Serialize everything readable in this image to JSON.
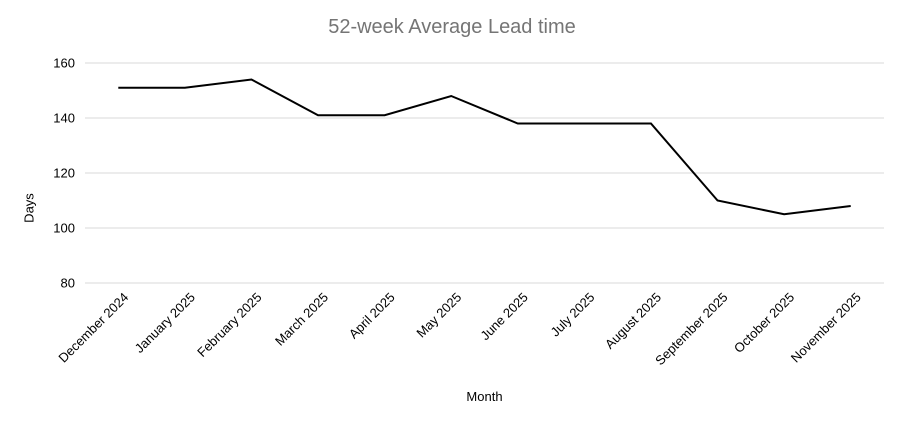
{
  "chart": {
    "title": "52-week Average Lead time",
    "x_axis_title": "Month",
    "y_axis_title": "Days"
  },
  "chart_data": {
    "type": "line",
    "title": "52-week Average Lead time",
    "xlabel": "Month",
    "ylabel": "Days",
    "categories": [
      "December 2024",
      "January 2025",
      "February 2025",
      "March 2025",
      "April 2025",
      "May 2025",
      "June 2025",
      "July 2025",
      "August 2025",
      "September 2025",
      "October 2025",
      "November 2025"
    ],
    "series": [
      {
        "name": "52-week Average Lead time",
        "values": [
          151,
          151,
          154,
          141,
          141,
          148,
          138,
          138,
          138,
          110,
          105,
          108
        ]
      }
    ],
    "ylim": [
      80,
      160
    ],
    "yticks": [
      80,
      100,
      120,
      140,
      160
    ],
    "grid": true,
    "legend_position": "none",
    "colors": {
      "series": "#000000",
      "gridline": "#d9d9d9",
      "title": "#757575",
      "tick_label": "#000000",
      "axis_title": "#000000",
      "background": "#ffffff"
    }
  }
}
